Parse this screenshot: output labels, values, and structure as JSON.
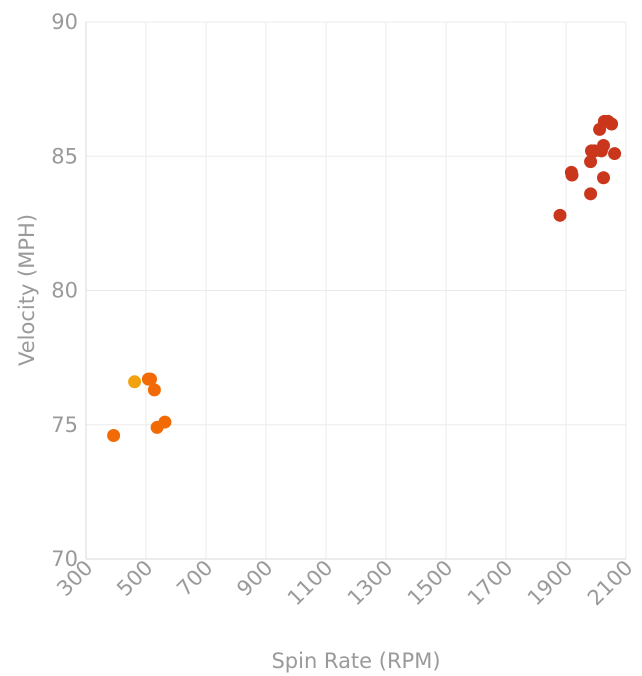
{
  "chart_data": {
    "type": "scatter",
    "xlabel": "Spin Rate (RPM)",
    "ylabel": "Velocity (MPH)",
    "xlim": [
      300,
      2100
    ],
    "ylim": [
      70,
      90
    ],
    "x_ticks": [
      300,
      500,
      700,
      900,
      1100,
      1300,
      1500,
      1700,
      1900,
      2100
    ],
    "y_ticks": [
      70,
      75,
      80,
      85,
      90
    ],
    "grid": true,
    "legend": "none",
    "series": [
      {
        "color": "#f2a20f",
        "points": [
          {
            "x": 462,
            "y": 76.6
          }
        ]
      },
      {
        "color": "#f26a06",
        "points": [
          {
            "x": 392,
            "y": 74.6
          },
          {
            "x": 508,
            "y": 76.7
          },
          {
            "x": 515,
            "y": 76.7
          },
          {
            "x": 528,
            "y": 76.3
          },
          {
            "x": 537,
            "y": 74.9
          },
          {
            "x": 563,
            "y": 75.1
          }
        ]
      },
      {
        "color": "#c9361c",
        "points": [
          {
            "x": 1880,
            "y": 82.8
          },
          {
            "x": 1918,
            "y": 84.4
          },
          {
            "x": 1920,
            "y": 84.3
          },
          {
            "x": 1982,
            "y": 84.8
          },
          {
            "x": 1982,
            "y": 83.6
          },
          {
            "x": 1985,
            "y": 85.2
          },
          {
            "x": 1995,
            "y": 85.2
          },
          {
            "x": 2012,
            "y": 86.0
          },
          {
            "x": 2018,
            "y": 85.2
          },
          {
            "x": 2025,
            "y": 84.2
          },
          {
            "x": 2025,
            "y": 85.4
          },
          {
            "x": 2028,
            "y": 86.3
          },
          {
            "x": 2040,
            "y": 86.3
          },
          {
            "x": 2052,
            "y": 86.2
          },
          {
            "x": 2062,
            "y": 85.1
          }
        ]
      }
    ]
  }
}
